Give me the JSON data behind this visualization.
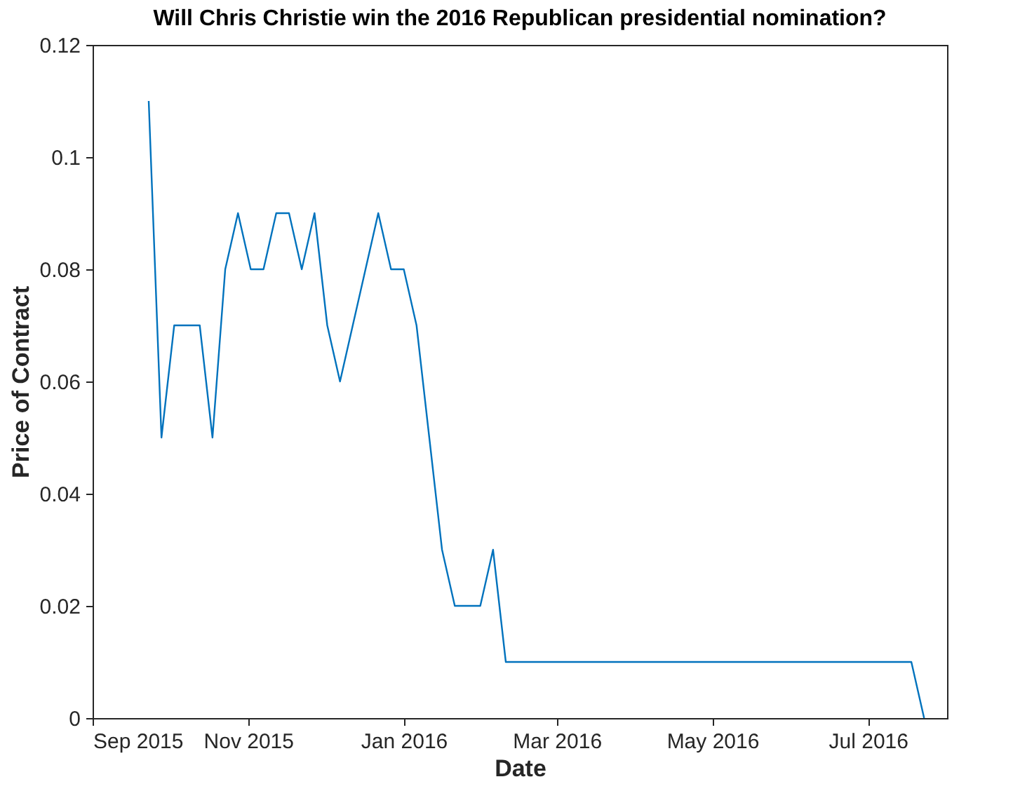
{
  "chart_data": {
    "type": "line",
    "title": "Will Chris Christie win the 2016 Republican presidential nomination?",
    "xlabel": "Date",
    "ylabel": "Price of Contract",
    "x": [
      "2015-09-23",
      "2015-09-28",
      "2015-10-03",
      "2015-10-13",
      "2015-10-18",
      "2015-10-23",
      "2015-10-28",
      "2015-11-02",
      "2015-11-07",
      "2015-11-12",
      "2015-11-17",
      "2015-11-22",
      "2015-11-27",
      "2015-12-02",
      "2015-12-07",
      "2015-12-12",
      "2015-12-17",
      "2015-12-22",
      "2015-12-27",
      "2016-01-01",
      "2016-01-06",
      "2016-01-11",
      "2016-01-16",
      "2016-01-21",
      "2016-01-31",
      "2016-02-05",
      "2016-02-10",
      "2016-07-18",
      "2016-07-23"
    ],
    "series": [
      {
        "color": "#0072bd",
        "values": [
          0.11,
          0.05,
          0.07,
          0.07,
          0.05,
          0.08,
          0.09,
          0.08,
          0.08,
          0.09,
          0.09,
          0.08,
          0.09,
          0.07,
          0.06,
          0.07,
          0.08,
          0.09,
          0.08,
          0.08,
          0.07,
          0.05,
          0.03,
          0.02,
          0.02,
          0.03,
          0.01,
          0.01,
          0
        ]
      }
    ],
    "xlim": [
      "2015-09-01",
      "2016-08-01"
    ],
    "xticks": [
      {
        "value": "2015-09-01",
        "label": "Sep 2015"
      },
      {
        "value": "2015-11-01",
        "label": "Nov 2015"
      },
      {
        "value": "2016-01-01",
        "label": "Jan 2016"
      },
      {
        "value": "2016-03-01",
        "label": "Mar 2016"
      },
      {
        "value": "2016-05-01",
        "label": "May 2016"
      },
      {
        "value": "2016-07-01",
        "label": "Jul 2016"
      }
    ],
    "ylim": [
      0,
      0.12
    ],
    "yticks": [
      0,
      0.02,
      0.04,
      0.06,
      0.08,
      0.1,
      0.12
    ],
    "grid": false,
    "marker": "none",
    "line_style": "solid",
    "legend": false
  }
}
